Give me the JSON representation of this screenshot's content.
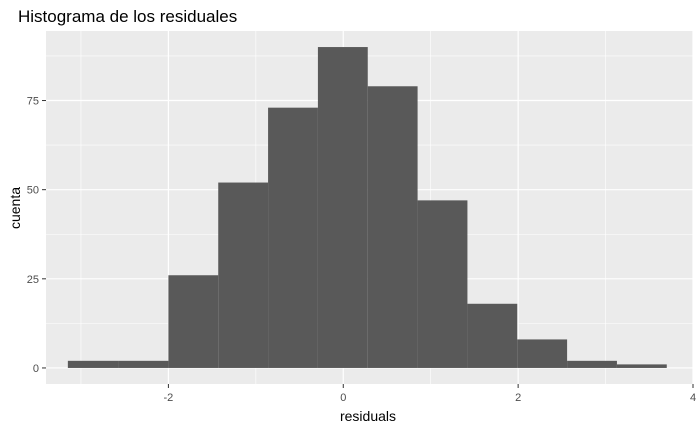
{
  "chart_data": {
    "type": "bar",
    "title": "Histograma de los residuales",
    "xlabel": "residuals",
    "ylabel": "cuenta",
    "xlim": [
      -3.4,
      4.0
    ],
    "ylim": [
      -4.5,
      94.5
    ],
    "x_ticks": [
      -2,
      0,
      2,
      4
    ],
    "y_ticks": [
      0,
      25,
      50,
      75
    ],
    "grid": true,
    "legend": "none",
    "bar_color": "#595959",
    "panel_color": "#ebebeb",
    "bins": [
      {
        "x0": -3.15,
        "x1": -2.57,
        "count": 2
      },
      {
        "x0": -2.57,
        "x1": -2.0,
        "count": 2
      },
      {
        "x0": -2.0,
        "x1": -1.43,
        "count": 26
      },
      {
        "x0": -1.43,
        "x1": -0.86,
        "count": 52
      },
      {
        "x0": -0.86,
        "x1": -0.29,
        "count": 73
      },
      {
        "x0": -0.29,
        "x1": 0.28,
        "count": 90
      },
      {
        "x0": 0.28,
        "x1": 0.85,
        "count": 79
      },
      {
        "x0": 0.85,
        "x1": 1.42,
        "count": 47
      },
      {
        "x0": 1.42,
        "x1": 1.99,
        "count": 18
      },
      {
        "x0": 1.99,
        "x1": 2.56,
        "count": 8
      },
      {
        "x0": 2.56,
        "x1": 3.13,
        "count": 2
      },
      {
        "x0": 3.13,
        "x1": 3.7,
        "count": 1
      }
    ]
  }
}
